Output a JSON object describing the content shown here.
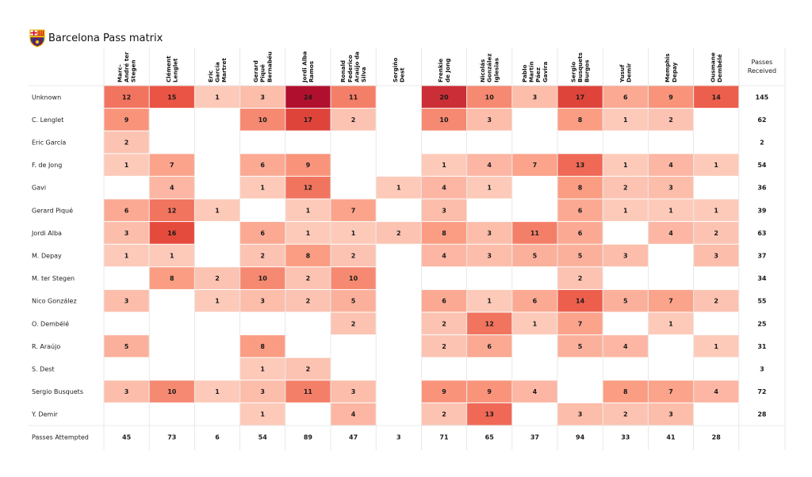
{
  "title": "Barcelona Pass matrix",
  "icons": {
    "crest": "barcelona-crest-icon"
  },
  "colors": {
    "low": "#fdd0c2",
    "high": "#b0102e",
    "grid": "#e3e3e3"
  },
  "chart_data": {
    "type": "heatmap",
    "title": "Barcelona Pass matrix",
    "columns": [
      "Marc-André ter Stegen",
      "Clément Lenglet",
      "Eric García Martret",
      "Gerard Piqué Bernabéu",
      "Jordi Alba Ramos",
      "Ronald Federico Araújo da Silva",
      "Sergiño Dest",
      "Frenkie de Jong",
      "Nicolás González Iglesias",
      "Pablo Martín Páez Gavira",
      "Sergio Busquets Burgos",
      "Yusuf Demir",
      "Memphis Depay",
      "Ousmane Dembélé"
    ],
    "column_label_lines": [
      [
        "Marc-",
        "André ter",
        "Stegen"
      ],
      [
        "Clément",
        "Lenglet"
      ],
      [
        "Eric",
        "García",
        "Martret"
      ],
      [
        "Gerard",
        "Piqué",
        "Bernabéu"
      ],
      [
        "Jordi Alba",
        "Ramos"
      ],
      [
        "Ronald",
        "Federico",
        "Araújo da",
        "Silva"
      ],
      [
        "Sergiño",
        "Dest"
      ],
      [
        "Frenkie",
        "de Jong"
      ],
      [
        "Nicolás",
        "González",
        "Iglesias"
      ],
      [
        "Pablo",
        "Martín",
        "Páez",
        "Gavira"
      ],
      [
        "Sergio",
        "Busquets",
        "Burgos"
      ],
      [
        "Yusuf",
        "Demir"
      ],
      [
        "Memphis",
        "Depay"
      ],
      [
        "Ousmane",
        "Dembélé"
      ]
    ],
    "total_column_label_lines": [
      "Passes",
      "Received"
    ],
    "rows": [
      "Unknown",
      "C. Lenglet",
      "Eric García",
      "F. de Jong",
      "Gavi",
      "Gerard Piqué",
      "Jordi Alba",
      "M. Depay",
      "M. ter Stegen",
      "Nico González",
      "O. Dembélé",
      "R. Araújo",
      "S. Dest",
      "Sergio Busquets",
      "Y. Demir"
    ],
    "values": [
      [
        12,
        15,
        1,
        3,
        24,
        11,
        null,
        20,
        10,
        3,
        17,
        6,
        9,
        14
      ],
      [
        9,
        null,
        null,
        10,
        17,
        2,
        null,
        10,
        3,
        null,
        8,
        1,
        2,
        null
      ],
      [
        2,
        null,
        null,
        null,
        null,
        null,
        null,
        null,
        null,
        null,
        null,
        null,
        null,
        null
      ],
      [
        1,
        7,
        null,
        6,
        9,
        null,
        null,
        1,
        4,
        7,
        13,
        1,
        4,
        1
      ],
      [
        null,
        4,
        null,
        1,
        12,
        null,
        1,
        4,
        1,
        null,
        8,
        2,
        3,
        null
      ],
      [
        6,
        12,
        1,
        null,
        1,
        7,
        null,
        3,
        null,
        null,
        6,
        1,
        1,
        1
      ],
      [
        3,
        16,
        null,
        6,
        1,
        1,
        2,
        8,
        3,
        11,
        6,
        null,
        4,
        2
      ],
      [
        1,
        1,
        null,
        2,
        8,
        2,
        null,
        4,
        3,
        5,
        5,
        3,
        null,
        3
      ],
      [
        null,
        8,
        2,
        10,
        2,
        10,
        null,
        null,
        null,
        null,
        2,
        null,
        null,
        null
      ],
      [
        3,
        null,
        1,
        3,
        2,
        5,
        null,
        6,
        1,
        6,
        14,
        5,
        7,
        2
      ],
      [
        null,
        null,
        null,
        null,
        null,
        2,
        null,
        2,
        12,
        1,
        7,
        null,
        1,
        null
      ],
      [
        5,
        null,
        null,
        8,
        null,
        null,
        null,
        2,
        6,
        null,
        5,
        4,
        null,
        1
      ],
      [
        null,
        null,
        null,
        1,
        2,
        null,
        null,
        null,
        null,
        null,
        null,
        null,
        null,
        null
      ],
      [
        3,
        10,
        1,
        3,
        11,
        3,
        null,
        9,
        9,
        4,
        null,
        8,
        7,
        4
      ],
      [
        null,
        null,
        null,
        1,
        null,
        4,
        null,
        2,
        13,
        null,
        3,
        2,
        3,
        null
      ]
    ],
    "passes_received": [
      145,
      62,
      2,
      54,
      36,
      39,
      63,
      37,
      34,
      55,
      25,
      31,
      3,
      72,
      28
    ],
    "passes_attempted_label": "Passes Attempted",
    "passes_attempted": [
      45,
      73,
      6,
      54,
      89,
      47,
      3,
      71,
      65,
      37,
      94,
      33,
      41,
      28
    ],
    "value_range": [
      0,
      24
    ]
  }
}
